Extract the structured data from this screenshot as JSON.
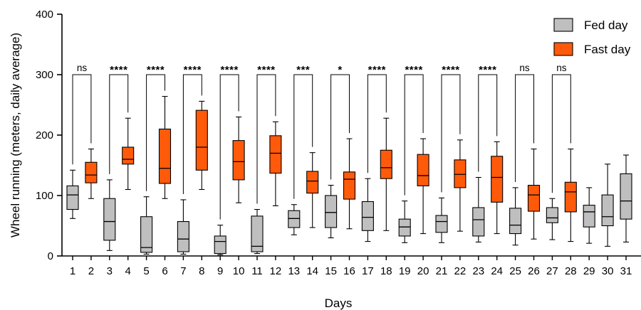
{
  "chart_data": {
    "type": "box",
    "ylabel": "Wheel running (meters, daily average)",
    "xlabel": "Days",
    "ylim": [
      0,
      400
    ],
    "yticks": [
      0,
      100,
      200,
      300,
      400
    ],
    "categories": [
      "1",
      "2",
      "3",
      "4",
      "5",
      "6",
      "7",
      "8",
      "9",
      "10",
      "11",
      "12",
      "13",
      "14",
      "15",
      "16",
      "17",
      "18",
      "19",
      "20",
      "21",
      "22",
      "23",
      "24",
      "25",
      "26",
      "27",
      "28",
      "29",
      "30",
      "31"
    ],
    "series": [
      {
        "name": "Fed day",
        "color": "#bfbfbf"
      },
      {
        "name": "Fast day",
        "color": "#ff5a0a"
      }
    ],
    "boxes": [
      {
        "day": 1,
        "series": 0,
        "min": 62,
        "q1": 77,
        "median": 101,
        "q3": 116,
        "max": 142
      },
      {
        "day": 2,
        "series": 1,
        "min": 95,
        "q1": 121,
        "median": 134,
        "q3": 155,
        "max": 177
      },
      {
        "day": 3,
        "series": 0,
        "min": 9,
        "q1": 26,
        "median": 57,
        "q3": 95,
        "max": 126
      },
      {
        "day": 4,
        "series": 1,
        "min": 110,
        "q1": 152,
        "median": 160,
        "q3": 180,
        "max": 228
      },
      {
        "day": 5,
        "series": 0,
        "min": 3,
        "q1": 6,
        "median": 14,
        "q3": 65,
        "max": 98
      },
      {
        "day": 6,
        "series": 1,
        "min": 95,
        "q1": 120,
        "median": 145,
        "q3": 210,
        "max": 264
      },
      {
        "day": 7,
        "series": 0,
        "min": 3,
        "q1": 7,
        "median": 28,
        "q3": 57,
        "max": 93
      },
      {
        "day": 8,
        "series": 1,
        "min": 110,
        "q1": 142,
        "median": 180,
        "q3": 241,
        "max": 256
      },
      {
        "day": 9,
        "series": 0,
        "min": 2,
        "q1": 4,
        "median": 24,
        "q3": 33,
        "max": 51
      },
      {
        "day": 10,
        "series": 1,
        "min": 88,
        "q1": 126,
        "median": 156,
        "q3": 191,
        "max": 230
      },
      {
        "day": 11,
        "series": 0,
        "min": 4,
        "q1": 7,
        "median": 16,
        "q3": 66,
        "max": 77
      },
      {
        "day": 12,
        "series": 1,
        "min": 83,
        "q1": 137,
        "median": 170,
        "q3": 199,
        "max": 222
      },
      {
        "day": 13,
        "series": 0,
        "min": 35,
        "q1": 47,
        "median": 62,
        "q3": 75,
        "max": 85
      },
      {
        "day": 14,
        "series": 1,
        "min": 47,
        "q1": 104,
        "median": 124,
        "q3": 140,
        "max": 171
      },
      {
        "day": 15,
        "series": 0,
        "min": 30,
        "q1": 47,
        "median": 72,
        "q3": 100,
        "max": 117
      },
      {
        "day": 16,
        "series": 1,
        "min": 45,
        "q1": 94,
        "median": 127,
        "q3": 139,
        "max": 194
      },
      {
        "day": 17,
        "series": 0,
        "min": 24,
        "q1": 42,
        "median": 64,
        "q3": 90,
        "max": 128
      },
      {
        "day": 18,
        "series": 1,
        "min": 42,
        "q1": 128,
        "median": 146,
        "q3": 175,
        "max": 228
      },
      {
        "day": 19,
        "series": 0,
        "min": 22,
        "q1": 33,
        "median": 48,
        "q3": 61,
        "max": 91
      },
      {
        "day": 20,
        "series": 1,
        "min": 37,
        "q1": 116,
        "median": 133,
        "q3": 168,
        "max": 194
      },
      {
        "day": 21,
        "series": 0,
        "min": 22,
        "q1": 39,
        "median": 57,
        "q3": 67,
        "max": 96
      },
      {
        "day": 22,
        "series": 1,
        "min": 41,
        "q1": 113,
        "median": 135,
        "q3": 159,
        "max": 192
      },
      {
        "day": 23,
        "series": 0,
        "min": 23,
        "q1": 33,
        "median": 60,
        "q3": 80,
        "max": 130
      },
      {
        "day": 24,
        "series": 1,
        "min": 37,
        "q1": 89,
        "median": 130,
        "q3": 165,
        "max": 189
      },
      {
        "day": 25,
        "series": 0,
        "min": 18,
        "q1": 37,
        "median": 51,
        "q3": 79,
        "max": 113
      },
      {
        "day": 26,
        "series": 1,
        "min": 28,
        "q1": 74,
        "median": 101,
        "q3": 117,
        "max": 177
      },
      {
        "day": 27,
        "series": 0,
        "min": 27,
        "q1": 55,
        "median": 63,
        "q3": 80,
        "max": 95
      },
      {
        "day": 28,
        "series": 1,
        "min": 24,
        "q1": 73,
        "median": 106,
        "q3": 122,
        "max": 177
      },
      {
        "day": 29,
        "series": 0,
        "min": 21,
        "q1": 48,
        "median": 73,
        "q3": 84,
        "max": 113
      },
      {
        "day": 30,
        "series": 0,
        "min": 16,
        "q1": 50,
        "median": 65,
        "q3": 101,
        "max": 152
      },
      {
        "day": 31,
        "series": 0,
        "min": 23,
        "q1": 61,
        "median": 91,
        "q3": 136,
        "max": 167
      }
    ],
    "comparisons": [
      {
        "days": [
          1,
          2
        ],
        "label": "ns"
      },
      {
        "days": [
          3,
          4
        ],
        "label": "****"
      },
      {
        "days": [
          5,
          6
        ],
        "label": "****"
      },
      {
        "days": [
          7,
          8
        ],
        "label": "****"
      },
      {
        "days": [
          9,
          10
        ],
        "label": "****"
      },
      {
        "days": [
          11,
          12
        ],
        "label": "****"
      },
      {
        "days": [
          13,
          14
        ],
        "label": "***"
      },
      {
        "days": [
          15,
          16
        ],
        "label": "*"
      },
      {
        "days": [
          17,
          18
        ],
        "label": "****"
      },
      {
        "days": [
          19,
          20
        ],
        "label": "****"
      },
      {
        "days": [
          21,
          22
        ],
        "label": "****"
      },
      {
        "days": [
          23,
          24
        ],
        "label": "****"
      },
      {
        "days": [
          25,
          26
        ],
        "label": "ns"
      },
      {
        "days": [
          27,
          28
        ],
        "label": "ns"
      }
    ],
    "legend": {
      "position": "top-right"
    }
  }
}
